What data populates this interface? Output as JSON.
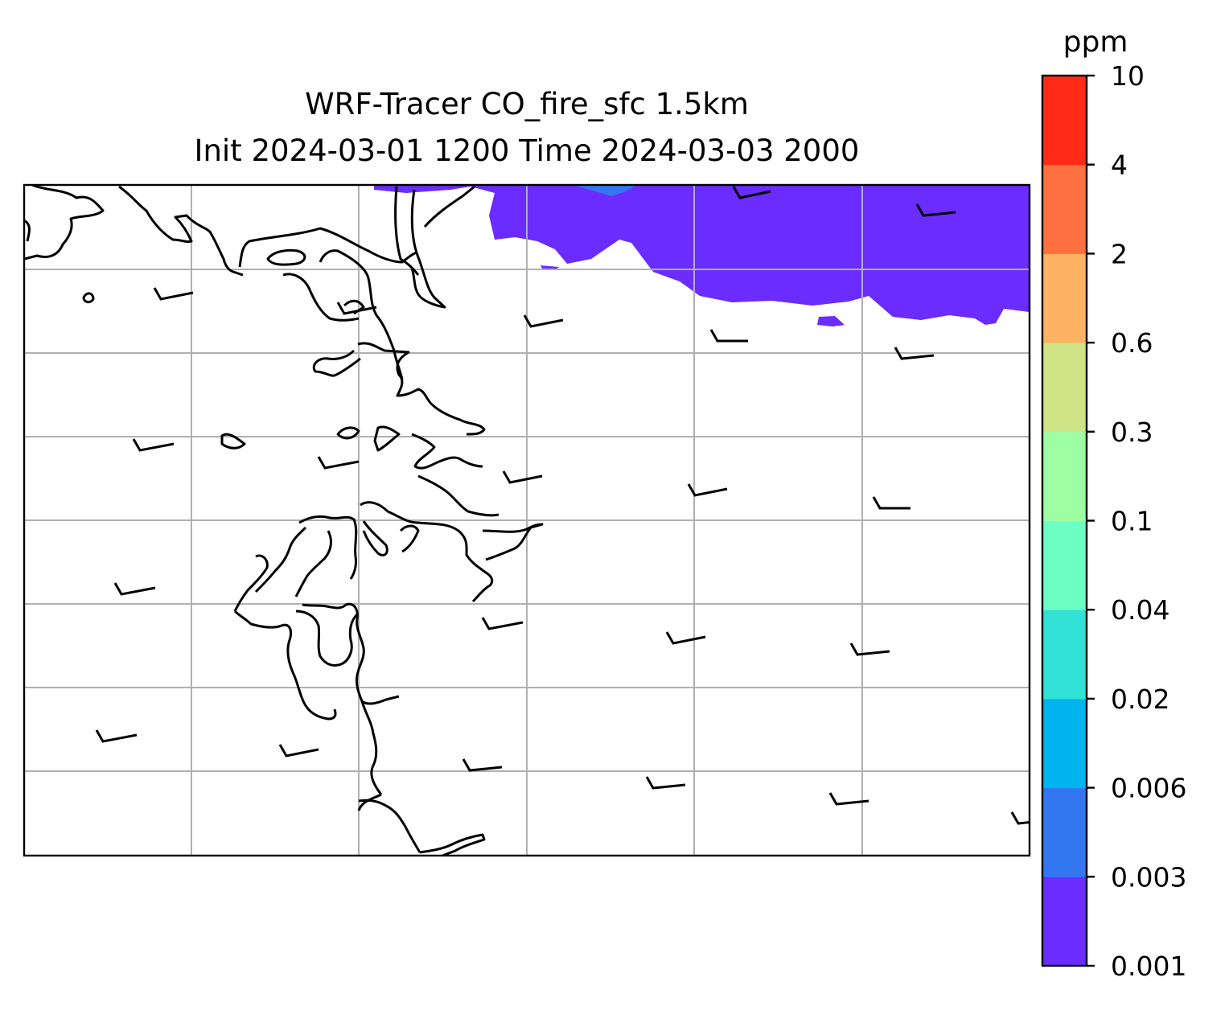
{
  "title_line1": "WRF-Tracer CO_fire_sfc 1.5km",
  "title_line2": "Init 2024-03-01 1200 Time 2024-03-03 2000",
  "colorbar": {
    "label": "ppm",
    "ticks": [
      "0.001",
      "0.003",
      "0.006",
      "0.02",
      "0.04",
      "0.1",
      "0.3",
      "0.6",
      "2",
      "4",
      "10"
    ],
    "colors": [
      "#6a2cff",
      "#3377f0",
      "#00b4ee",
      "#33e2d6",
      "#6cffc3",
      "#9efea4",
      "#d0e387",
      "#feb363",
      "#ff7040",
      "#ff2b16"
    ]
  },
  "map": {
    "grid_lines": true,
    "plume_color": "#6a2cff",
    "plume_core_color": "#3377f0",
    "coastline_color": "#000000",
    "wind_barbs": "black"
  }
}
